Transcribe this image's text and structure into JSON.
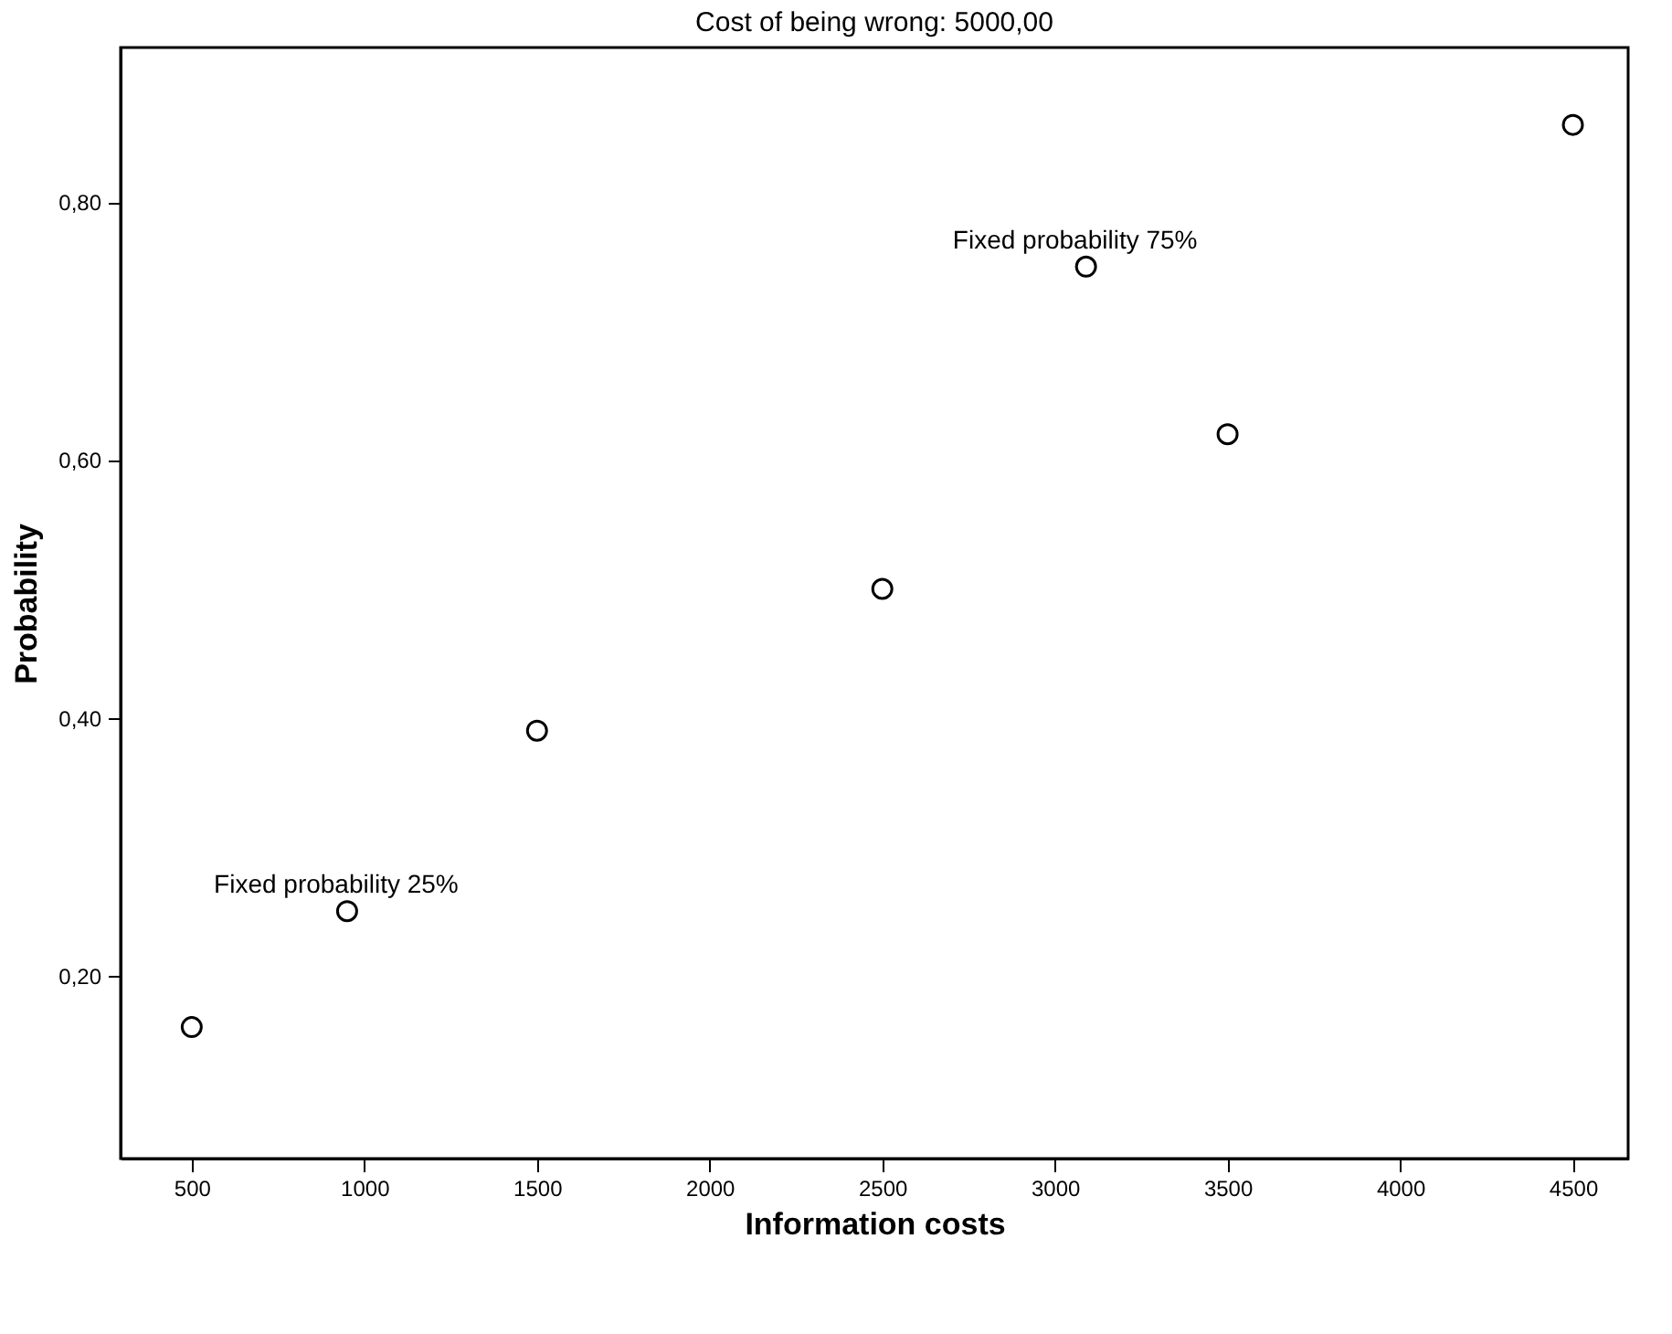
{
  "chart_data": {
    "type": "scatter",
    "title": "Cost of being wrong: 5000,00",
    "xlabel": "Information costs",
    "ylabel": "Probability",
    "x": [
      500,
      950,
      1500,
      2500,
      3090,
      3500,
      4500
    ],
    "series": [
      {
        "color": "#000000",
        "values": [
          0.16,
          0.25,
          0.39,
          0.5,
          0.75,
          0.62,
          0.86
        ]
      }
    ],
    "marker": "circle",
    "xlim": [
      294,
      4660
    ],
    "xticks": [
      500,
      1000,
      1500,
      2000,
      2500,
      3000,
      3500,
      4000,
      4500
    ],
    "ylim": [
      0.058,
      0.92
    ],
    "yticks": [
      {
        "value": 0.2,
        "label": "0,20"
      },
      {
        "value": 0.4,
        "label": "0,40"
      },
      {
        "value": 0.6,
        "label": "0,60"
      },
      {
        "value": 0.8,
        "label": "0,80"
      }
    ],
    "annotations": [
      {
        "text": "Fixed probability 25%",
        "x": 950,
        "y": 0.25
      },
      {
        "text": "Fixed probability 75%",
        "x": 3090,
        "y": 0.75
      }
    ],
    "grid": false
  }
}
